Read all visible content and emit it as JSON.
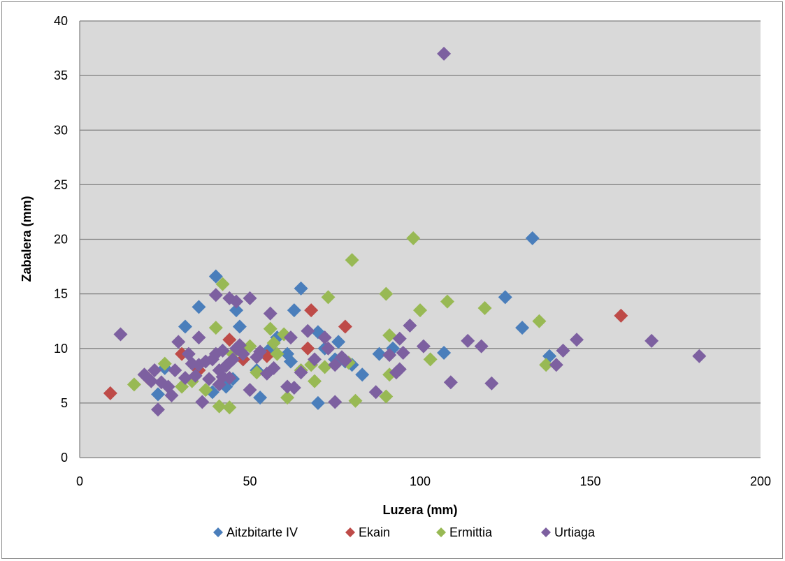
{
  "chart_data": {
    "type": "scatter",
    "title": "",
    "xlabel": "Luzera (mm)",
    "ylabel": "Zabalera (mm)",
    "xlim": [
      0,
      200
    ],
    "ylim": [
      0,
      40
    ],
    "x_ticks": [
      "0",
      "50",
      "100",
      "150",
      "200"
    ],
    "y_ticks": [
      "0",
      "5",
      "10",
      "15",
      "20",
      "25",
      "30",
      "35",
      "40"
    ],
    "grid": "horizontal",
    "legend_position": "bottom",
    "marker": "diamond",
    "series": [
      {
        "name": "Aitzbitarte IV",
        "color": "#4a7ebb",
        "points": [
          [
            23,
            5.8
          ],
          [
            25,
            8.2
          ],
          [
            31,
            12
          ],
          [
            35,
            13.8
          ],
          [
            40,
            16.6
          ],
          [
            46,
            13.5
          ],
          [
            47,
            12
          ],
          [
            43,
            6.5
          ],
          [
            39,
            6
          ],
          [
            45,
            7.2
          ],
          [
            48,
            9
          ],
          [
            52,
            8
          ],
          [
            53,
            5.5
          ],
          [
            56,
            10
          ],
          [
            58,
            11
          ],
          [
            61,
            9.5
          ],
          [
            62,
            8.8
          ],
          [
            63,
            13.5
          ],
          [
            65,
            15.5
          ],
          [
            70,
            11.5
          ],
          [
            70,
            5
          ],
          [
            72,
            10
          ],
          [
            75,
            9
          ],
          [
            76,
            10.6
          ],
          [
            78,
            8.8
          ],
          [
            80,
            8.5
          ],
          [
            83,
            7.6
          ],
          [
            88,
            9.5
          ],
          [
            92,
            10
          ],
          [
            107,
            9.6
          ],
          [
            125,
            14.7
          ],
          [
            130,
            11.9
          ],
          [
            133,
            20.1
          ],
          [
            138,
            9.3
          ]
        ]
      },
      {
        "name": "Ekain",
        "color": "#be4b48",
        "points": [
          [
            9,
            5.9
          ],
          [
            20,
            7.3
          ],
          [
            30,
            9.5
          ],
          [
            35,
            8
          ],
          [
            44,
            10.8
          ],
          [
            48,
            9
          ],
          [
            55,
            9.3
          ],
          [
            67,
            10
          ],
          [
            68,
            13.5
          ],
          [
            78,
            12
          ],
          [
            159,
            13
          ]
        ]
      },
      {
        "name": "Ermittia",
        "color": "#98b954",
        "points": [
          [
            16,
            6.7
          ],
          [
            25,
            8.6
          ],
          [
            30,
            6.5
          ],
          [
            33,
            7
          ],
          [
            37,
            6.2
          ],
          [
            40,
            11.9
          ],
          [
            41,
            4.7
          ],
          [
            42,
            15.9
          ],
          [
            44,
            4.6
          ],
          [
            45,
            9.5
          ],
          [
            48,
            10
          ],
          [
            50,
            10.2
          ],
          [
            52,
            7.8
          ],
          [
            56,
            11.8
          ],
          [
            57,
            10.5
          ],
          [
            58,
            9.5
          ],
          [
            60,
            11.3
          ],
          [
            61,
            5.5
          ],
          [
            65,
            8
          ],
          [
            68,
            8.5
          ],
          [
            69,
            7
          ],
          [
            72,
            8.3
          ],
          [
            73,
            14.7
          ],
          [
            79,
            8.7
          ],
          [
            80,
            18.1
          ],
          [
            81,
            5.2
          ],
          [
            90,
            5.6
          ],
          [
            90,
            15
          ],
          [
            91,
            11.2
          ],
          [
            91,
            7.6
          ],
          [
            98,
            20.1
          ],
          [
            100,
            13.5
          ],
          [
            103,
            9
          ],
          [
            108,
            14.3
          ],
          [
            119,
            13.7
          ],
          [
            135,
            12.5
          ],
          [
            137,
            8.5
          ]
        ]
      },
      {
        "name": "Urtiaga",
        "color": "#7d60a0",
        "points": [
          [
            12,
            11.3
          ],
          [
            19,
            7.6
          ],
          [
            21,
            7
          ],
          [
            22,
            8
          ],
          [
            23,
            4.4
          ],
          [
            24,
            6.9
          ],
          [
            26,
            6.5
          ],
          [
            27,
            5.7
          ],
          [
            28,
            8
          ],
          [
            29,
            10.6
          ],
          [
            31,
            7.3
          ],
          [
            32,
            9.5
          ],
          [
            33,
            8.6
          ],
          [
            34,
            7.5
          ],
          [
            35,
            11
          ],
          [
            35,
            8.5
          ],
          [
            36,
            5.1
          ],
          [
            37,
            8.8
          ],
          [
            38,
            7.2
          ],
          [
            39,
            9
          ],
          [
            40,
            9.5
          ],
          [
            40,
            14.9
          ],
          [
            41,
            8
          ],
          [
            41,
            6.7
          ],
          [
            42,
            9.8
          ],
          [
            42,
            7.4
          ],
          [
            43,
            8.4
          ],
          [
            44,
            7.3
          ],
          [
            44,
            14.6
          ],
          [
            45,
            9
          ],
          [
            46,
            14.3
          ],
          [
            46,
            10
          ],
          [
            47,
            10.3
          ],
          [
            48,
            9.5
          ],
          [
            50,
            14.6
          ],
          [
            50,
            6.2
          ],
          [
            52,
            9.2
          ],
          [
            53,
            9.7
          ],
          [
            55,
            7.7
          ],
          [
            56,
            13.2
          ],
          [
            57,
            8.2
          ],
          [
            61,
            6.5
          ],
          [
            62,
            11
          ],
          [
            63,
            6.4
          ],
          [
            65,
            7.8
          ],
          [
            67,
            11.6
          ],
          [
            69,
            9
          ],
          [
            72,
            11
          ],
          [
            73,
            10
          ],
          [
            75,
            8.5
          ],
          [
            75,
            5.1
          ],
          [
            77,
            9.2
          ],
          [
            78,
            8.9
          ],
          [
            87,
            6
          ],
          [
            91,
            9.4
          ],
          [
            93,
            7.8
          ],
          [
            94,
            10.9
          ],
          [
            94,
            8.1
          ],
          [
            95,
            9.6
          ],
          [
            97,
            12.1
          ],
          [
            101,
            10.2
          ],
          [
            107,
            37
          ],
          [
            109,
            6.9
          ],
          [
            114,
            10.7
          ],
          [
            118,
            10.2
          ],
          [
            121,
            6.8
          ],
          [
            140,
            8.5
          ],
          [
            142,
            9.8
          ],
          [
            146,
            10.8
          ],
          [
            168,
            10.7
          ],
          [
            182,
            9.3
          ]
        ]
      }
    ]
  }
}
